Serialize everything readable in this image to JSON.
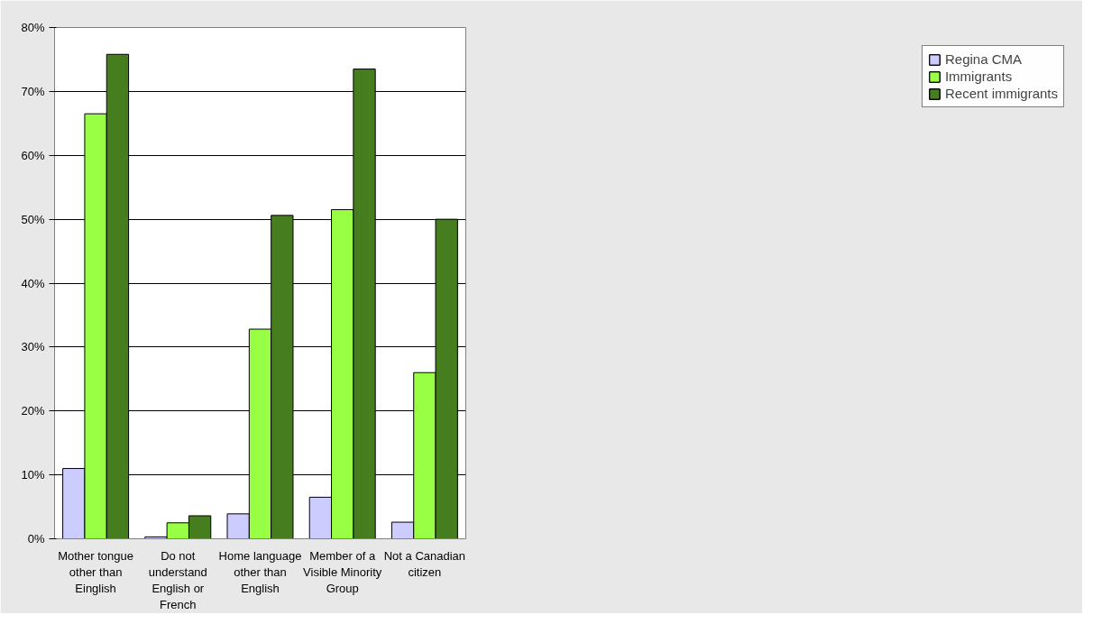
{
  "chart_data": {
    "type": "bar",
    "categories": [
      "Mother tongue other than Einglish",
      "Do not understand English or French",
      "Home language other than English",
      "Member of a Visible Minority Group",
      "Not a Canadian citizen"
    ],
    "series": [
      {
        "name": "Regina CMA",
        "color": "#ccccff",
        "values": [
          11.0,
          0.3,
          3.9,
          6.5,
          2.6
        ]
      },
      {
        "name": "Immigrants",
        "color": "#99ff44",
        "values": [
          66.5,
          2.5,
          32.8,
          51.5,
          26.0
        ]
      },
      {
        "name": "Recent immigrants",
        "color": "#467d1e",
        "values": [
          75.8,
          3.6,
          50.6,
          73.5,
          50.0
        ]
      }
    ],
    "ylim": [
      0,
      80
    ],
    "yticks": [
      {
        "value": 0,
        "label": "0%"
      },
      {
        "value": 10,
        "label": "10%"
      },
      {
        "value": 20,
        "label": "20%"
      },
      {
        "value": 30,
        "label": "30%"
      },
      {
        "value": 40,
        "label": "40%"
      },
      {
        "value": 50,
        "label": "50%"
      },
      {
        "value": 60,
        "label": "60%"
      },
      {
        "value": 70,
        "label": "70%"
      },
      {
        "value": 80,
        "label": "80%"
      }
    ],
    "grid": "y",
    "legend": "right"
  }
}
